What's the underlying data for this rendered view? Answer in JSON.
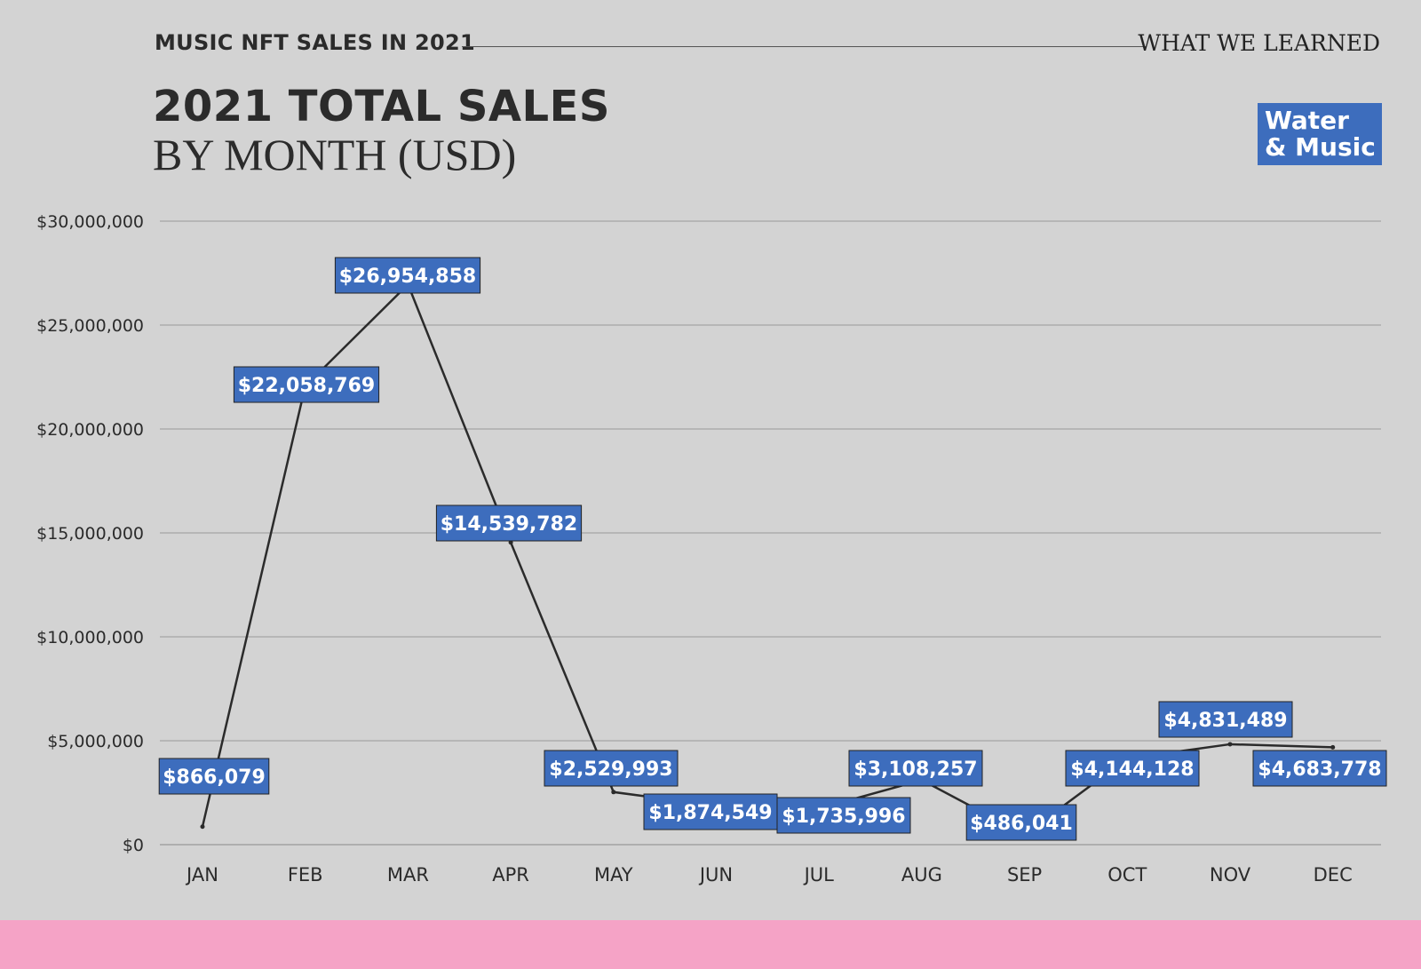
{
  "header": {
    "kicker": "MUSIC NFT SALES IN 2021",
    "right_label": "WHAT WE LEARNED",
    "title_line1": "2021 TOTAL SALES",
    "title_line2": "BY MONTH (USD)"
  },
  "logo": {
    "line1": "Water",
    "line2": "& Music"
  },
  "colors": {
    "background": "#d3d3d3",
    "label_fill": "#3d6dbd",
    "line": "#2b2b2b",
    "footer_band": "#f5a3c6"
  },
  "chart_data": {
    "type": "line",
    "categories": [
      "JAN",
      "FEB",
      "MAR",
      "APR",
      "MAY",
      "JUN",
      "JUL",
      "AUG",
      "SEP",
      "OCT",
      "NOV",
      "DEC"
    ],
    "values": [
      866079,
      22058769,
      26954858,
      14539782,
      2529993,
      1874549,
      1735996,
      3108257,
      486041,
      4144128,
      4831489,
      4683778
    ],
    "data_labels": [
      "$866,079",
      "$22,058,769",
      "$26,954,858",
      "$14,539,782",
      "$2,529,993",
      "$1,874,549",
      "$1,735,996",
      "$3,108,257",
      "$486,041",
      "$4,144,128",
      "$4,831,489",
      "$4,683,778"
    ],
    "yticks": [
      0,
      5000000,
      10000000,
      15000000,
      20000000,
      25000000,
      30000000
    ],
    "ytick_labels": [
      "$0",
      "$5,000,000",
      "$10,000,000",
      "$15,000,000",
      "$20,000,000",
      "$25,000,000",
      "$30,000,000"
    ],
    "ylim": [
      0,
      30000000
    ],
    "grid": true
  }
}
